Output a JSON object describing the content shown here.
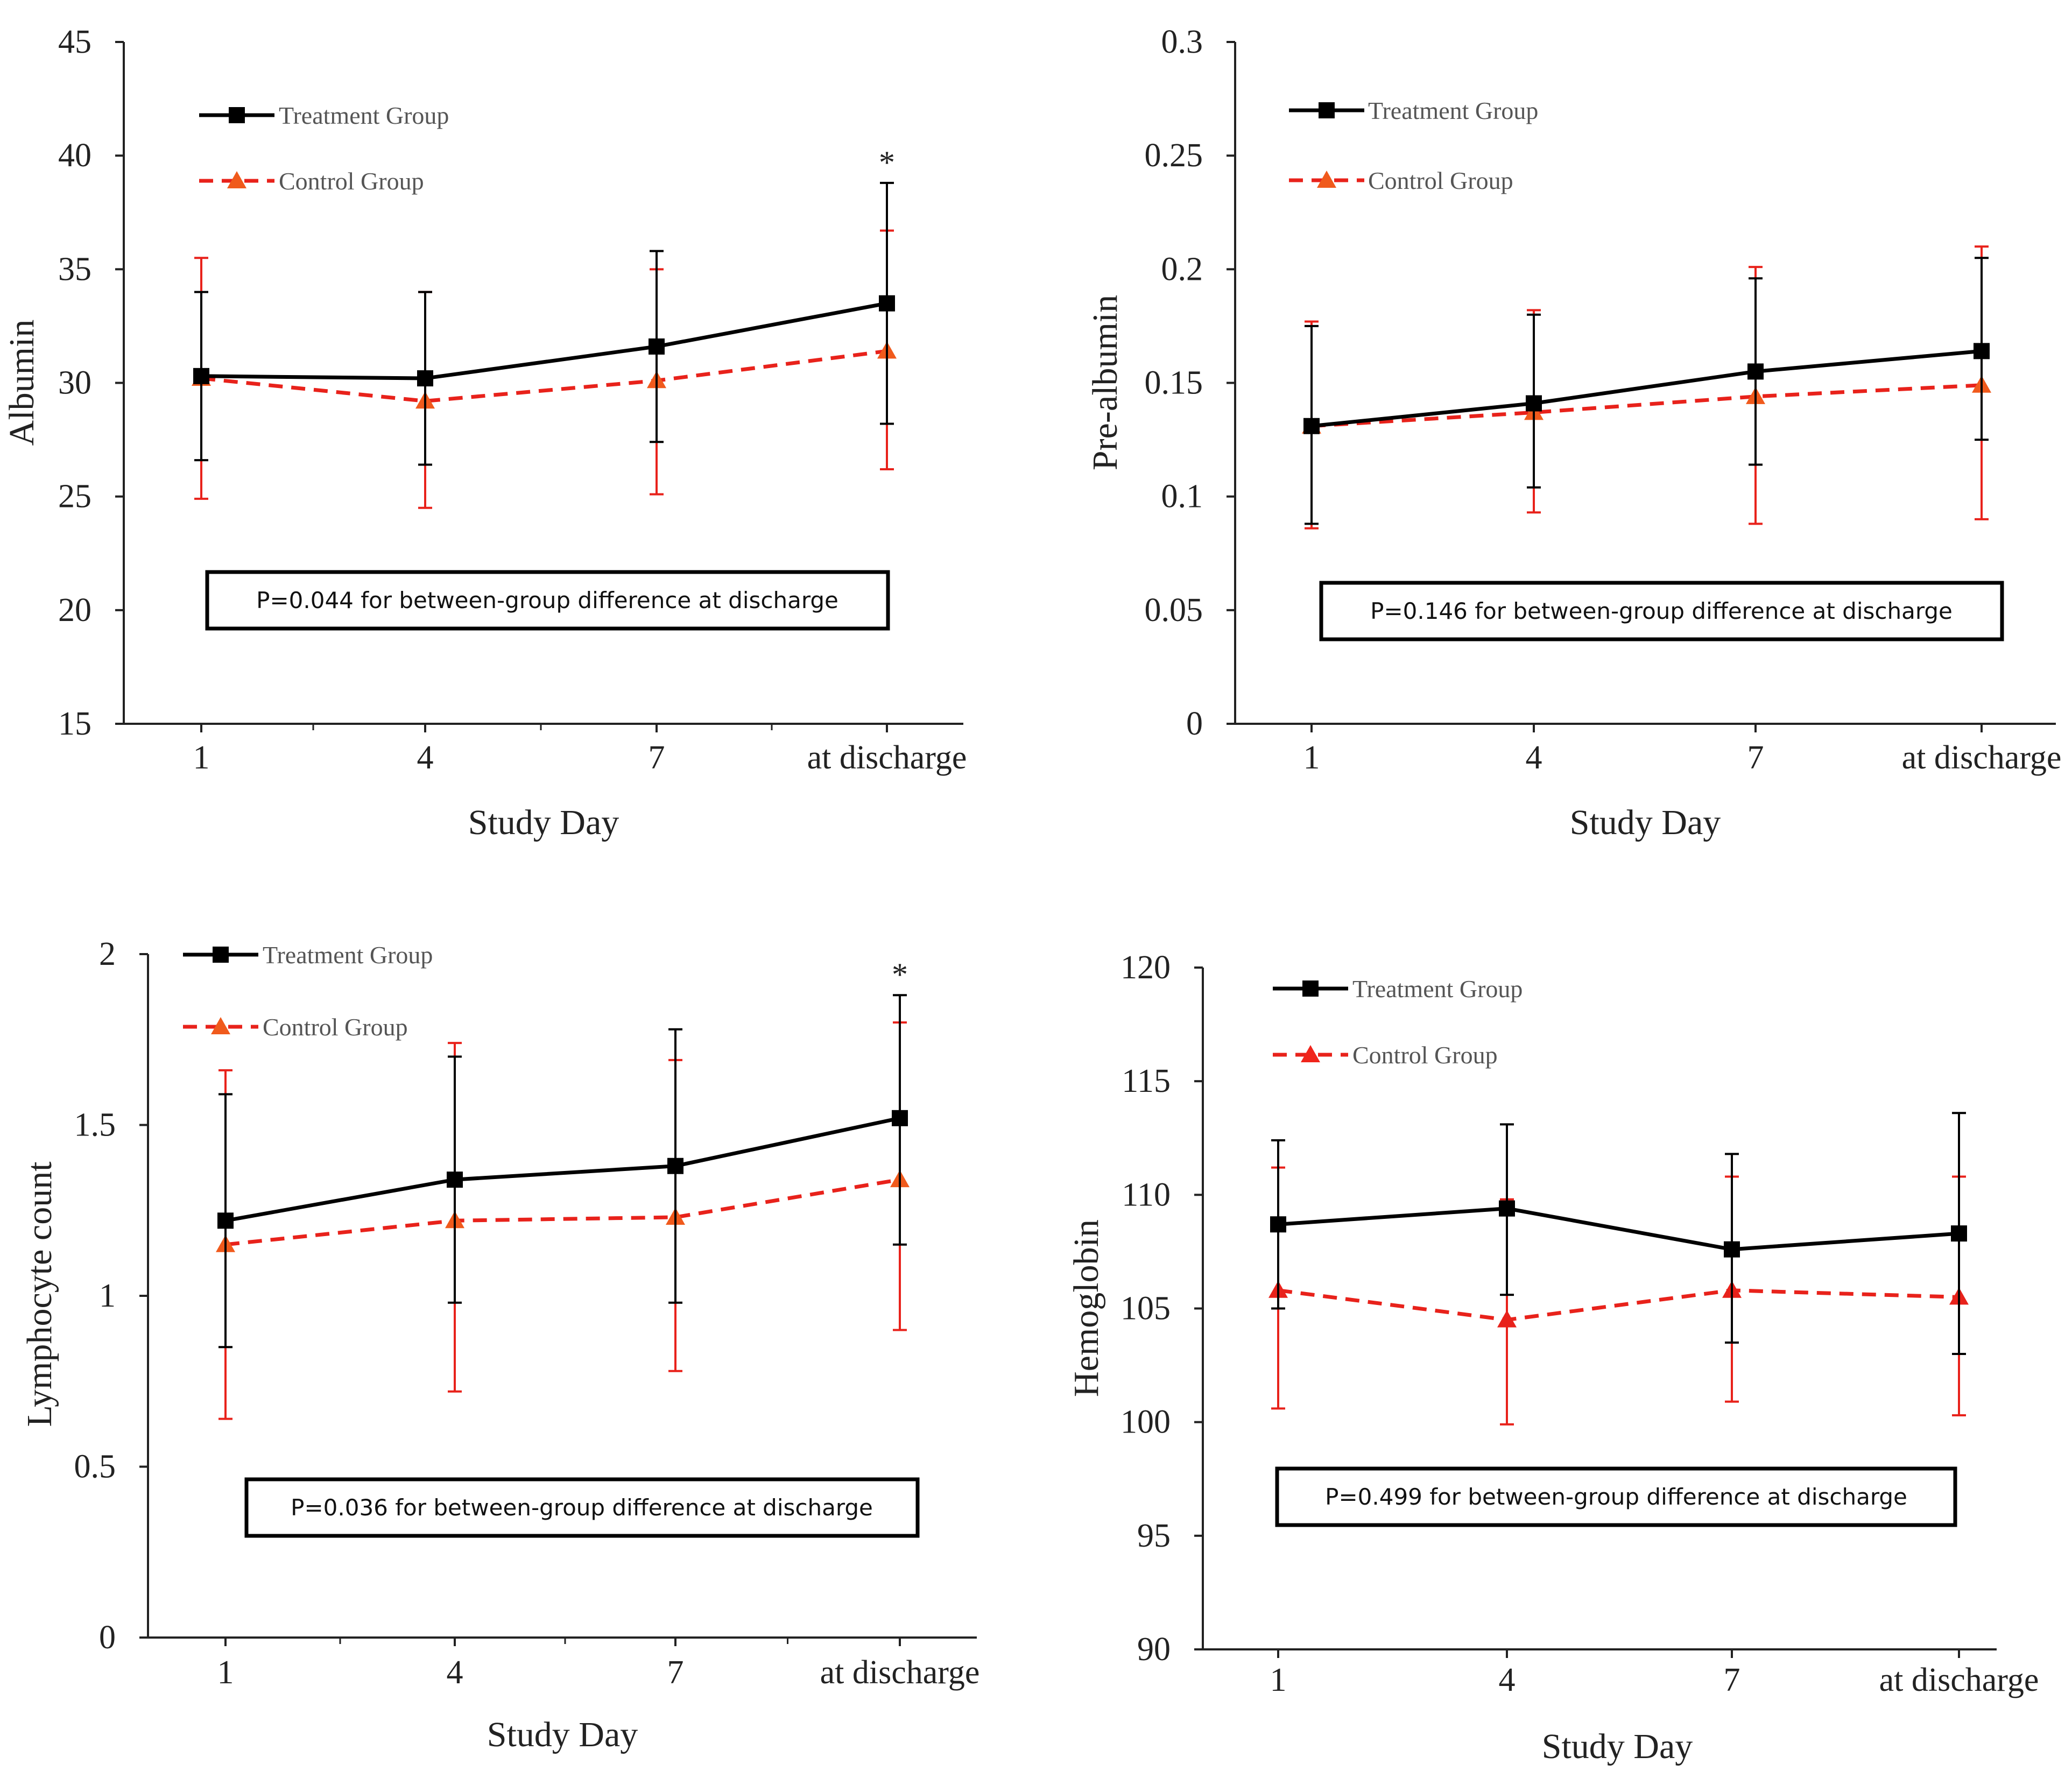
{
  "colors": {
    "treatment": "#000000",
    "control": "#e8221b",
    "control_marker": "#f05a1c",
    "axis": "#222222"
  },
  "chart_data": [
    {
      "id": "albumin",
      "type": "line",
      "title": "",
      "xlabel": "Study Day",
      "ylabel": "Albumin",
      "categories": [
        "1",
        "4",
        "7",
        "at discharge"
      ],
      "ylim": [
        15,
        45
      ],
      "yticks": [
        15,
        20,
        25,
        30,
        35,
        40,
        45
      ],
      "ytick_labels": [
        "15",
        "20",
        "25",
        "30",
        "35",
        "40",
        "45"
      ],
      "series": [
        {
          "name": "Treatment Group",
          "marker": "square",
          "values": [
            30.3,
            30.2,
            31.6,
            33.5
          ],
          "err_high": [
            34.0,
            34.0,
            35.8,
            38.8
          ],
          "err_low": [
            26.6,
            26.4,
            27.4,
            28.2
          ]
        },
        {
          "name": "Control Group",
          "marker": "triangle",
          "values": [
            30.2,
            29.2,
            30.1,
            31.4
          ],
          "err_high": [
            35.5,
            34.0,
            35.0,
            36.7
          ],
          "err_low": [
            24.9,
            24.5,
            25.1,
            26.2
          ]
        }
      ],
      "significance": [
        "",
        "",
        "",
        "*"
      ],
      "note": "P=0.044 for  between-group difference at discharge"
    },
    {
      "id": "prealbumin",
      "type": "line",
      "title": "",
      "xlabel": "Study Day",
      "ylabel": "Pre-albumin",
      "categories": [
        "1",
        "4",
        "7",
        "at discharge"
      ],
      "ylim": [
        0,
        0.3
      ],
      "yticks": [
        0,
        0.05,
        0.1,
        0.15,
        0.2,
        0.25,
        0.3
      ],
      "ytick_labels": [
        "0",
        "0.05",
        "0.1",
        "0.15",
        "0.2",
        "0.25",
        "0.3"
      ],
      "series": [
        {
          "name": "Treatment Group",
          "marker": "square",
          "values": [
            0.131,
            0.141,
            0.155,
            0.164
          ],
          "err_high": [
            0.175,
            0.18,
            0.196,
            0.205
          ],
          "err_low": [
            0.088,
            0.104,
            0.114,
            0.125
          ]
        },
        {
          "name": "Control Group",
          "marker": "triangle",
          "values": [
            0.131,
            0.137,
            0.144,
            0.149
          ],
          "err_high": [
            0.177,
            0.182,
            0.201,
            0.21
          ],
          "err_low": [
            0.086,
            0.093,
            0.088,
            0.09
          ]
        }
      ],
      "significance": [
        "",
        "",
        "",
        ""
      ],
      "note": "P=0.146 for  between-group difference at discharge"
    },
    {
      "id": "lymphocyte",
      "type": "line",
      "title": "",
      "xlabel": "Study Day",
      "ylabel": "Lymphocyte count",
      "categories": [
        "1",
        "4",
        "7",
        "at discharge"
      ],
      "ylim": [
        0,
        2
      ],
      "yticks": [
        0,
        0.5,
        1,
        1.5,
        2
      ],
      "ytick_labels": [
        "0",
        "0.5",
        "1",
        "1.5",
        "2"
      ],
      "series": [
        {
          "name": "Treatment Group",
          "marker": "square",
          "values": [
            1.22,
            1.34,
            1.38,
            1.52
          ],
          "err_high": [
            1.59,
            1.7,
            1.78,
            1.88
          ],
          "err_low": [
            0.85,
            0.98,
            0.98,
            1.15
          ]
        },
        {
          "name": "Control Group",
          "marker": "triangle",
          "values": [
            1.15,
            1.22,
            1.23,
            1.34
          ],
          "err_high": [
            1.66,
            1.74,
            1.69,
            1.8
          ],
          "err_low": [
            0.64,
            0.72,
            0.78,
            0.9
          ]
        }
      ],
      "significance": [
        "",
        "",
        "",
        "*"
      ],
      "note": "P=0.036 for  between-group difference at discharge"
    },
    {
      "id": "hemoglobin",
      "type": "line",
      "title": "",
      "xlabel": "Study Day",
      "ylabel": "Hemoglobin",
      "categories": [
        "1",
        "4",
        "7",
        "at discharge"
      ],
      "ylim": [
        90,
        120
      ],
      "yticks": [
        90,
        95,
        100,
        105,
        110,
        115,
        120
      ],
      "ytick_labels": [
        "90",
        "95",
        "100",
        "105",
        "110",
        "115",
        "120"
      ],
      "series": [
        {
          "name": "Treatment Group",
          "marker": "square",
          "values": [
            108.7,
            109.4,
            107.6,
            108.3
          ],
          "err_high": [
            112.4,
            113.1,
            111.8,
            113.6
          ],
          "err_low": [
            105.0,
            105.6,
            103.5,
            103.0
          ]
        },
        {
          "name": "Control Group",
          "marker": "triangle",
          "values": [
            105.8,
            104.5,
            105.8,
            105.5
          ],
          "err_high": [
            111.2,
            109.8,
            110.8,
            110.8
          ],
          "err_low": [
            100.6,
            99.9,
            100.9,
            100.3
          ]
        }
      ],
      "significance": [
        "",
        "",
        "",
        ""
      ],
      "note": "P=0.499 for  between-group difference at discharge"
    }
  ]
}
